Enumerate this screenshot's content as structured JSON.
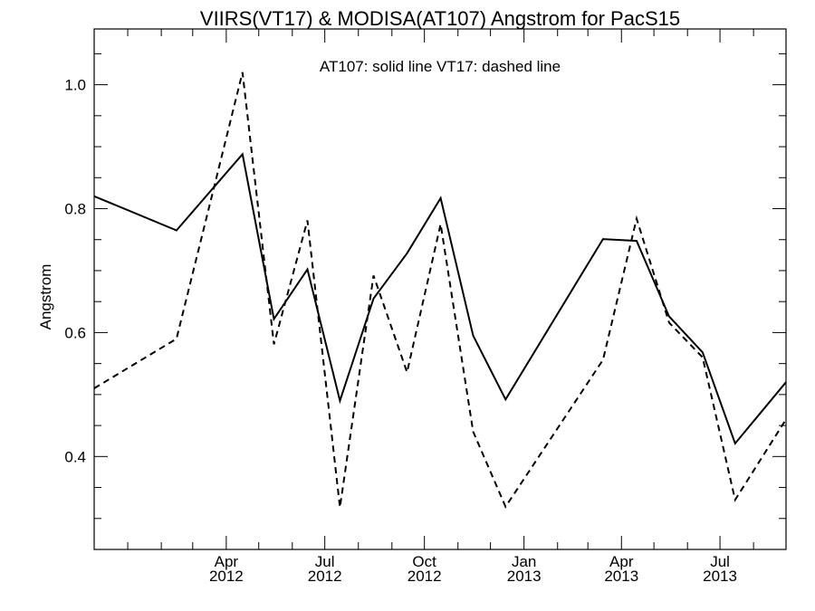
{
  "chart_data": {
    "type": "line",
    "title": "VIIRS(VT17) & MODISA(AT107)  Angstrom for PacS15",
    "annotation": "AT107: solid line   VT17: dashed line",
    "xlabel": "",
    "ylabel": "Angstrom",
    "xlim": [
      "2011-12-01",
      "2013-08-31"
    ],
    "ylim": [
      0.25,
      1.09
    ],
    "yticks": [
      0.4,
      0.6,
      0.8,
      1.0
    ],
    "ytick_labels": [
      "0.4",
      "0.6",
      "0.8",
      "1.0"
    ],
    "xticks": [
      {
        "date": "2012-04-01",
        "month": "Apr",
        "year": "2012"
      },
      {
        "date": "2012-07-01",
        "month": "Jul",
        "year": "2012"
      },
      {
        "date": "2012-10-01",
        "month": "Oct",
        "year": "2012"
      },
      {
        "date": "2013-01-01",
        "month": "Jan",
        "year": "2013"
      },
      {
        "date": "2013-04-01",
        "month": "Apr",
        "year": "2013"
      },
      {
        "date": "2013-07-01",
        "month": "Jul",
        "year": "2013"
      }
    ],
    "grid": false,
    "series": [
      {
        "name": "AT107",
        "style": "solid",
        "color": "#000000",
        "x": [
          "2011-12-01",
          "2012-02-15",
          "2012-04-16",
          "2012-05-15",
          "2012-06-15",
          "2012-07-15",
          "2012-08-15",
          "2012-09-15",
          "2012-10-16",
          "2012-11-15",
          "2012-12-15",
          "2013-03-15",
          "2013-04-15",
          "2013-05-15",
          "2013-06-15",
          "2013-07-15",
          "2013-08-31"
        ],
        "y": [
          0.82,
          0.765,
          0.888,
          0.622,
          0.702,
          0.49,
          0.655,
          0.728,
          0.817,
          0.595,
          0.492,
          0.751,
          0.748,
          0.626,
          0.568,
          0.421,
          0.52
        ]
      },
      {
        "name": "VT17",
        "style": "dashed",
        "color": "#000000",
        "x": [
          "2011-12-01",
          "2012-02-15",
          "2012-04-16",
          "2012-05-15",
          "2012-06-15",
          "2012-07-15",
          "2012-08-15",
          "2012-09-15",
          "2012-10-16",
          "2012-11-15",
          "2012-12-15",
          "2013-03-15",
          "2013-04-15",
          "2013-05-15",
          "2013-06-15",
          "2013-07-15",
          "2013-08-31"
        ],
        "y": [
          0.51,
          0.59,
          1.02,
          0.581,
          0.781,
          0.318,
          0.692,
          0.536,
          0.775,
          0.44,
          0.319,
          0.556,
          0.784,
          0.616,
          0.56,
          0.33,
          0.46
        ]
      }
    ]
  }
}
